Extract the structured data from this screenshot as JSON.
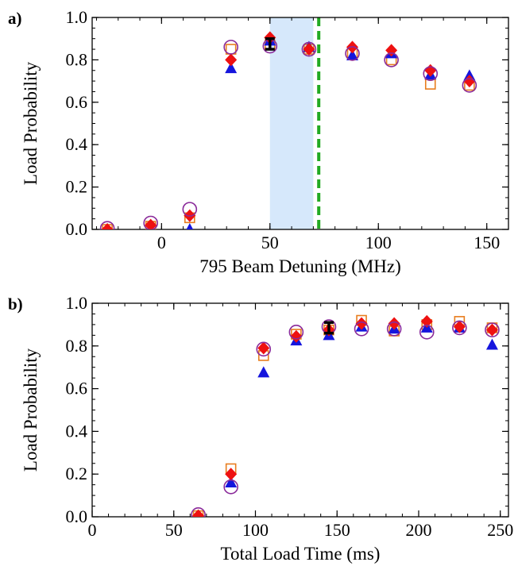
{
  "chart_data": [
    {
      "panel_label": "a)",
      "type": "scatter",
      "xlabel": "795 Beam Detuning (MHz)",
      "ylabel": "Load Probability",
      "xlim": [
        -32,
        160
      ],
      "ylim": [
        0,
        1.0
      ],
      "xticks": [
        0,
        50,
        100,
        150
      ],
      "xtick_labels": [
        "0",
        "50",
        "100",
        "150"
      ],
      "yticks": [
        0,
        0.2,
        0.4,
        0.6,
        0.8,
        1.0
      ],
      "ytick_labels": [
        "0.0",
        "0.2",
        "0.4",
        "0.6",
        "0.8",
        "1.0"
      ],
      "shaded_band": {
        "x": [
          50,
          70
        ],
        "color": "#d6e8fb"
      },
      "vline": {
        "x": 72.5,
        "color": "#22aa22",
        "style": "dashed"
      },
      "series": [
        {
          "marker": "circle-open",
          "color": "#8a2a9a",
          "x": [
            -25,
            -5,
            13,
            32,
            50,
            68,
            88,
            106,
            124,
            142
          ],
          "y": [
            0.005,
            0.03,
            0.095,
            0.86,
            0.865,
            0.85,
            0.83,
            0.8,
            0.735,
            0.68
          ]
        },
        {
          "marker": "square-open",
          "color": "#e87d1e",
          "x": [
            -25,
            -5,
            13,
            32,
            50,
            68,
            88,
            106,
            124,
            142
          ],
          "y": [
            0.0,
            0.015,
            0.055,
            0.85,
            0.87,
            0.85,
            0.83,
            0.8,
            0.685,
            0.68
          ]
        },
        {
          "marker": "triangle-filled",
          "color": "#1515dd",
          "x": [
            -25,
            -5,
            13,
            32,
            50,
            68,
            88,
            106,
            124,
            142
          ],
          "y": [
            0.0,
            0.0,
            0.0,
            0.76,
            0.89,
            0.86,
            0.82,
            0.83,
            0.73,
            0.725
          ]
        },
        {
          "marker": "diamond-filled",
          "color": "#ee1111",
          "x": [
            -25,
            -5,
            13,
            32,
            50,
            68,
            88,
            106,
            124,
            142
          ],
          "y": [
            0.0,
            0.02,
            0.065,
            0.8,
            0.905,
            0.85,
            0.86,
            0.845,
            0.75,
            0.7
          ]
        },
        {
          "marker": "errorbar",
          "color": "#000000",
          "x": [
            50
          ],
          "y": [
            0.875
          ],
          "yerr": [
            0.025
          ]
        }
      ]
    },
    {
      "panel_label": "b)",
      "type": "scatter",
      "xlabel": "Total Load Time (ms)",
      "ylabel": "Load Probability",
      "xlim": [
        0,
        255
      ],
      "ylim": [
        0,
        1.0
      ],
      "xticks": [
        0,
        50,
        100,
        150,
        200,
        250
      ],
      "xtick_labels": [
        "0",
        "50",
        "100",
        "150",
        "200",
        "250"
      ],
      "yticks": [
        0,
        0.2,
        0.4,
        0.6,
        0.8,
        1.0
      ],
      "ytick_labels": [
        "0.0",
        "0.2",
        "0.4",
        "0.6",
        "0.8",
        "1.0"
      ],
      "series": [
        {
          "marker": "circle-open",
          "color": "#8a2a9a",
          "x": [
            65,
            85,
            105,
            125,
            145,
            165,
            185,
            205,
            225,
            245
          ],
          "y": [
            0.01,
            0.14,
            0.785,
            0.865,
            0.89,
            0.88,
            0.88,
            0.865,
            0.885,
            0.875
          ]
        },
        {
          "marker": "square-open",
          "color": "#e87d1e",
          "x": [
            65,
            85,
            105,
            125,
            145,
            165,
            185,
            205,
            225,
            245
          ],
          "y": [
            0.005,
            0.225,
            0.755,
            0.855,
            0.875,
            0.92,
            0.87,
            0.9,
            0.915,
            0.885
          ]
        },
        {
          "marker": "triangle-filled",
          "color": "#1515dd",
          "x": [
            65,
            85,
            105,
            125,
            145,
            165,
            185,
            205,
            225,
            245
          ],
          "y": [
            0.0,
            0.16,
            0.675,
            0.825,
            0.85,
            0.89,
            0.88,
            0.885,
            0.885,
            0.805
          ]
        },
        {
          "marker": "diamond-filled",
          "color": "#ee1111",
          "x": [
            65,
            85,
            105,
            125,
            145,
            165,
            185,
            205,
            225,
            245
          ],
          "y": [
            0.005,
            0.2,
            0.79,
            0.845,
            0.875,
            0.905,
            0.905,
            0.915,
            0.89,
            0.875
          ]
        },
        {
          "marker": "errorbar",
          "color": "#000000",
          "x": [
            145
          ],
          "y": [
            0.885
          ],
          "yerr": [
            0.025
          ]
        }
      ]
    }
  ]
}
